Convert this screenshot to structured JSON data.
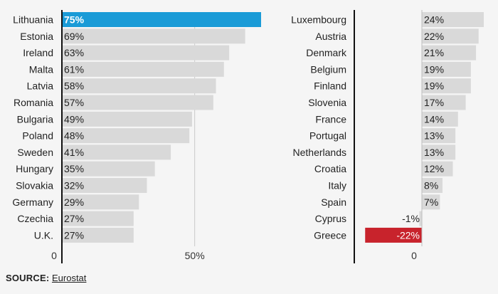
{
  "chart_data": [
    {
      "type": "bar",
      "orientation": "horizontal",
      "categories": [
        "Lithuania",
        "Estonia",
        "Ireland",
        "Malta",
        "Latvia",
        "Romania",
        "Bulgaria",
        "Poland",
        "Sweden",
        "Hungary",
        "Slovakia",
        "Germany",
        "Czechia",
        "U.K."
      ],
      "values": [
        75,
        69,
        63,
        61,
        58,
        57,
        49,
        48,
        41,
        35,
        32,
        29,
        27,
        27
      ],
      "data_labels": [
        "75%",
        "69%",
        "63%",
        "61%",
        "58%",
        "57%",
        "49%",
        "48%",
        "41%",
        "35%",
        "32%",
        "29%",
        "27%",
        "27%"
      ],
      "xlim": [
        0,
        75
      ],
      "tick_labels": [
        "0",
        "50%"
      ],
      "tick_values": [
        0,
        50
      ],
      "grid": true,
      "colors": {
        "default": "#d9d9d9",
        "highlight": "#1a9bd7"
      },
      "highlight_category": "Lithuania"
    },
    {
      "type": "bar",
      "orientation": "horizontal",
      "categories": [
        "Luxembourg",
        "Austria",
        "Denmark",
        "Belgium",
        "Finland",
        "Slovenia",
        "France",
        "Portugal",
        "Netherlands",
        "Croatia",
        "Italy",
        "Spain",
        "Cyprus",
        "Greece"
      ],
      "values": [
        24,
        22,
        21,
        19,
        19,
        17,
        14,
        13,
        13,
        12,
        8,
        7,
        -1,
        -22
      ],
      "data_labels": [
        "24%",
        "22%",
        "21%",
        "19%",
        "19%",
        "17%",
        "14%",
        "13%",
        "13%",
        "12%",
        "8%",
        "7%",
        "-1%",
        "-22%"
      ],
      "xlim": [
        -22,
        24
      ],
      "tick_labels": [
        "0"
      ],
      "tick_values": [
        0
      ],
      "grid": false,
      "colors": {
        "default": "#d9d9d9",
        "negative_highlight": "#c8232c"
      },
      "highlight_category": "Greece"
    }
  ],
  "source": {
    "label": "SOURCE:",
    "name": "Eurostat"
  }
}
